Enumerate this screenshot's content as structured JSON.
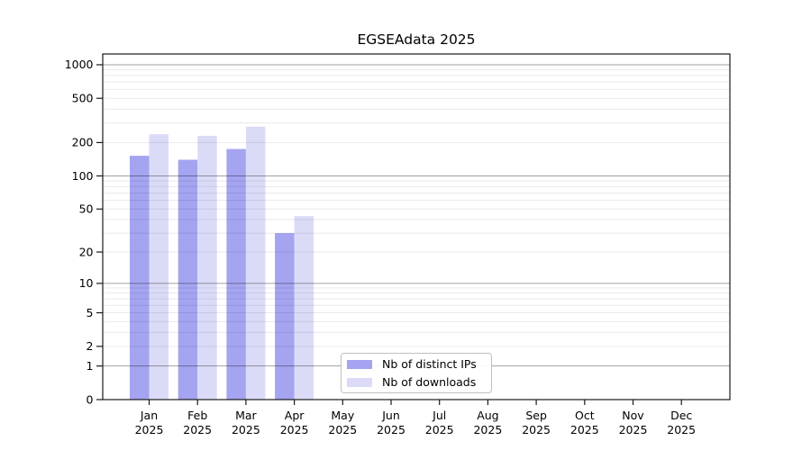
{
  "chart_data": {
    "type": "bar",
    "title": "EGSEAdata 2025",
    "categories": [
      "Jan",
      "Feb",
      "Mar",
      "Apr",
      "May",
      "Jun",
      "Jul",
      "Aug",
      "Sep",
      "Oct",
      "Nov",
      "Dec"
    ],
    "category_year": "2025",
    "series": [
      {
        "name": "Nb of distinct IPs",
        "color": "#a4a4f0",
        "values": [
          152,
          140,
          175,
          30,
          0,
          0,
          0,
          0,
          0,
          0,
          0,
          0
        ]
      },
      {
        "name": "Nb of downloads",
        "color": "#dbdbf8",
        "values": [
          238,
          230,
          278,
          43,
          0,
          0,
          0,
          0,
          0,
          0,
          0,
          0
        ]
      }
    ],
    "xlabel": "",
    "ylabel": "",
    "yscale": "log10(1+x)",
    "ylim": [
      0,
      1000
    ],
    "yticks": [
      0,
      1,
      2,
      5,
      10,
      20,
      50,
      100,
      200,
      500,
      1000
    ],
    "grid": {
      "on": true,
      "major_lines": [
        1,
        10,
        100,
        1000
      ],
      "minor_lines": [
        2,
        3,
        4,
        5,
        6,
        7,
        8,
        9,
        20,
        30,
        40,
        50,
        60,
        70,
        80,
        90,
        200,
        300,
        400,
        500,
        600,
        700,
        800,
        900
      ],
      "major_color": "#a0a0a0",
      "minor_color": "#e9e9e9"
    },
    "legend": {
      "position": "lower-center",
      "entries": [
        "Nb of distinct IPs",
        "Nb of downloads"
      ]
    },
    "colors": {
      "spine": "#1a1a1a",
      "tick": "#1a1a1a",
      "text": "#000000",
      "background": "#ffffff"
    }
  }
}
